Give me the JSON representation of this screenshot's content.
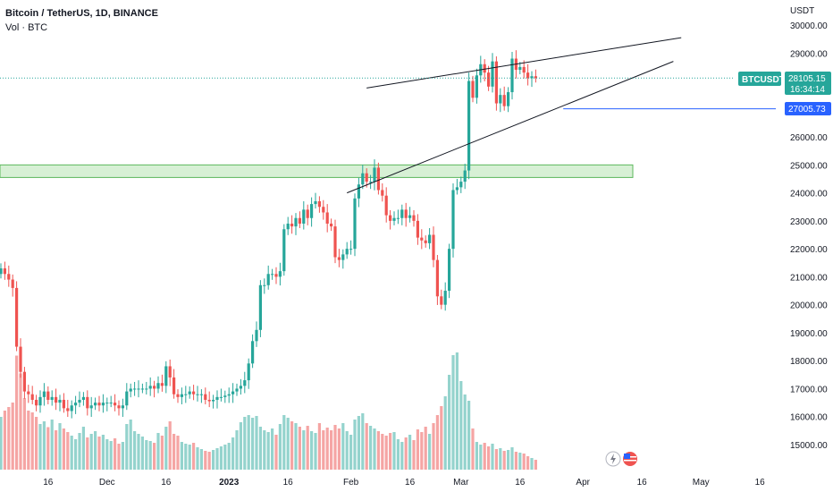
{
  "header": {
    "title": "Bitcoin / TetherUS, 1D, BINANCE",
    "volume_label": "Vol · BTC"
  },
  "axis": {
    "y_unit": "USDT"
  },
  "price_tags": {
    "symbol": "BTCUSDT",
    "last_price": "28105.15",
    "countdown": "16:34:14",
    "level": "27005.73"
  },
  "colors": {
    "up": "#26a69a",
    "down": "#ef5350",
    "vol_up": "#94d3cd",
    "vol_down": "#f5a5a4",
    "zone_fill": "#d7f0d5",
    "zone_stroke": "#5cb85c",
    "level_line": "#2962ff",
    "trendline": "#131722",
    "tag_bg": "#26a69a"
  },
  "chart_data": {
    "type": "candlestick",
    "ylim": [
      14300,
      30400
    ],
    "yticks": [
      15000,
      16000,
      17000,
      18000,
      19000,
      20000,
      21000,
      22000,
      23000,
      24000,
      25000,
      26000,
      27000,
      28000,
      29000,
      30000
    ],
    "ytick_labels": [
      "15000.00",
      "16000.00",
      "17000.00",
      "18000.00",
      "19000.00",
      "20000.00",
      "21000.00",
      "22000.00",
      "23000.00",
      "24000.00",
      "25000.00",
      "26000.00",
      "27000.00",
      "28000.00",
      "29000.00",
      "30000.00"
    ],
    "xticks": [
      {
        "label": "16",
        "date": "2022-11-16"
      },
      {
        "label": "Dec",
        "date": "2022-12-01"
      },
      {
        "label": "16",
        "date": "2022-12-16"
      },
      {
        "label": "2023",
        "date": "2023-01-01",
        "bold": true
      },
      {
        "label": "16",
        "date": "2023-01-16"
      },
      {
        "label": "Feb",
        "date": "2023-02-01"
      },
      {
        "label": "16",
        "date": "2023-02-16"
      },
      {
        "label": "Mar",
        "date": "2023-03-01"
      },
      {
        "label": "16",
        "date": "2023-03-16"
      },
      {
        "label": "Apr",
        "date": "2023-04-01"
      },
      {
        "label": "16",
        "date": "2023-04-16"
      },
      {
        "label": "May",
        "date": "2023-05-01"
      },
      {
        "label": "16",
        "date": "2023-05-16"
      }
    ],
    "start_date": "2022-11-04",
    "closes": [
      21300,
      21100,
      20900,
      20600,
      18500,
      17600,
      16900,
      16800,
      16600,
      16400,
      16700,
      16900,
      16600,
      16700,
      16500,
      16600,
      16300,
      16200,
      16400,
      16500,
      16600,
      16700,
      16300,
      16400,
      16500,
      16400,
      16500,
      16500,
      16500,
      16400,
      16300,
      16400,
      16900,
      17000,
      17000,
      17000,
      17000,
      17000,
      17100,
      17000,
      17200,
      17100,
      17800,
      17400,
      16800,
      16700,
      16800,
      16800,
      16900,
      16800,
      16800,
      16800,
      16600,
      16550,
      16600,
      16700,
      16700,
      16750,
      16800,
      16900,
      17000,
      17100,
      17300,
      17900,
      18700,
      19100,
      20700,
      20700,
      21100,
      21100,
      21000,
      21200,
      22700,
      22900,
      22800,
      23100,
      22900,
      23400,
      23100,
      23600,
      23700,
      23500,
      23300,
      22900,
      22800,
      21700,
      21600,
      21800,
      22000,
      22000,
      23800,
      24300,
      24700,
      24400,
      24400,
      24900,
      24100,
      23900,
      23200,
      23000,
      23100,
      23100,
      23400,
      23100,
      23200,
      23000,
      22400,
      22300,
      22200,
      22500,
      21600,
      20300,
      20000,
      20500,
      22000,
      24100,
      24200,
      24400,
      24800,
      28000,
      27400,
      28200,
      28600,
      28300,
      27800,
      28700,
      27200,
      27500,
      27100,
      27600,
      28800,
      28400,
      28500,
      28300,
      28100,
      28170,
      28105
    ],
    "volumes": [
      118,
      132,
      140,
      150,
      255,
      215,
      160,
      132,
      128,
      118,
      102,
      108,
      95,
      112,
      88,
      104,
      92,
      84,
      76,
      68,
      82,
      96,
      72,
      80,
      86,
      74,
      78,
      68,
      64,
      70,
      58,
      62,
      102,
      112,
      86,
      80,
      74,
      66,
      64,
      60,
      82,
      76,
      96,
      108,
      80,
      76,
      62,
      58,
      56,
      60,
      50,
      46,
      42,
      40,
      44,
      48,
      52,
      56,
      60,
      72,
      88,
      106,
      118,
      122,
      116,
      120,
      96,
      88,
      84,
      92,
      78,
      102,
      122,
      116,
      108,
      104,
      96,
      88,
      98,
      86,
      82,
      104,
      88,
      94,
      88,
      100,
      92,
      104,
      86,
      78,
      112,
      120,
      126,
      104,
      98,
      92,
      86,
      80,
      76,
      82,
      84,
      68,
      62,
      72,
      78,
      66,
      90,
      84,
      96,
      80,
      104,
      122,
      142,
      164,
      212,
      256,
      262,
      198,
      168,
      154,
      92,
      62,
      56,
      60,
      52,
      58,
      46,
      48,
      42,
      44,
      50,
      40,
      38,
      36,
      30,
      26,
      22
    ]
  },
  "annotations": {
    "zone": {
      "low": 24550,
      "high": 25000
    },
    "level_price": 27005.73,
    "upper_trend": [
      {
        "date": "2023-02-05",
        "price": 27750
      },
      {
        "date": "2023-04-26",
        "price": 29550
      }
    ],
    "lower_trend": [
      {
        "date": "2023-01-31",
        "price": 24000
      },
      {
        "date": "2023-04-24",
        "price": 28700
      }
    ]
  }
}
